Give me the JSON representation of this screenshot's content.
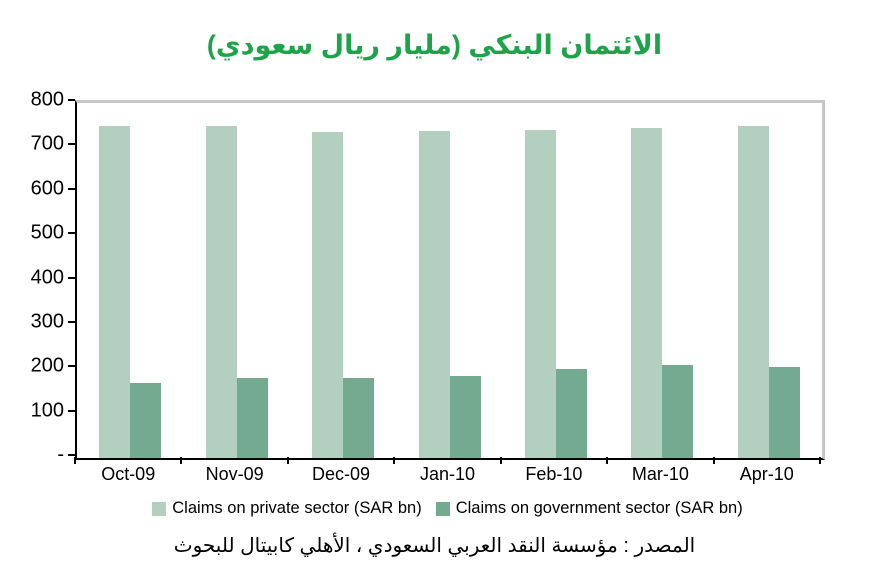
{
  "title": {
    "text": "الائتمان البنكي (مليار ريال سعودي)",
    "color": "#1FA34A"
  },
  "chart_data": {
    "type": "bar",
    "categories": [
      "Oct-09",
      "Nov-09",
      "Dec-09",
      "Jan-10",
      "Feb-10",
      "Mar-10",
      "Apr-10"
    ],
    "series": [
      {
        "key": "private",
        "name": "Claims on private sector (SAR bn)",
        "color": "#B3CFC0",
        "values": [
          748,
          749,
          734,
          736,
          739,
          743,
          749
        ]
      },
      {
        "key": "government",
        "name": "Claims on government sector (SAR bn)",
        "color": "#73AA90",
        "values": [
          170,
          180,
          180,
          185,
          200,
          210,
          204
        ]
      }
    ],
    "ylim": [
      0,
      800
    ],
    "ytick_step": 100,
    "zero_tick_label": "-",
    "grid": false,
    "legend_position": "bottom"
  },
  "source": {
    "text": "المصدر : مؤسسة النقد العربي السعودي ، الأهلي كابيتال للبحوث"
  },
  "colors": {
    "axis": "#000000",
    "plot_border": "#C6C6C6",
    "background": "#FFFFFF"
  }
}
